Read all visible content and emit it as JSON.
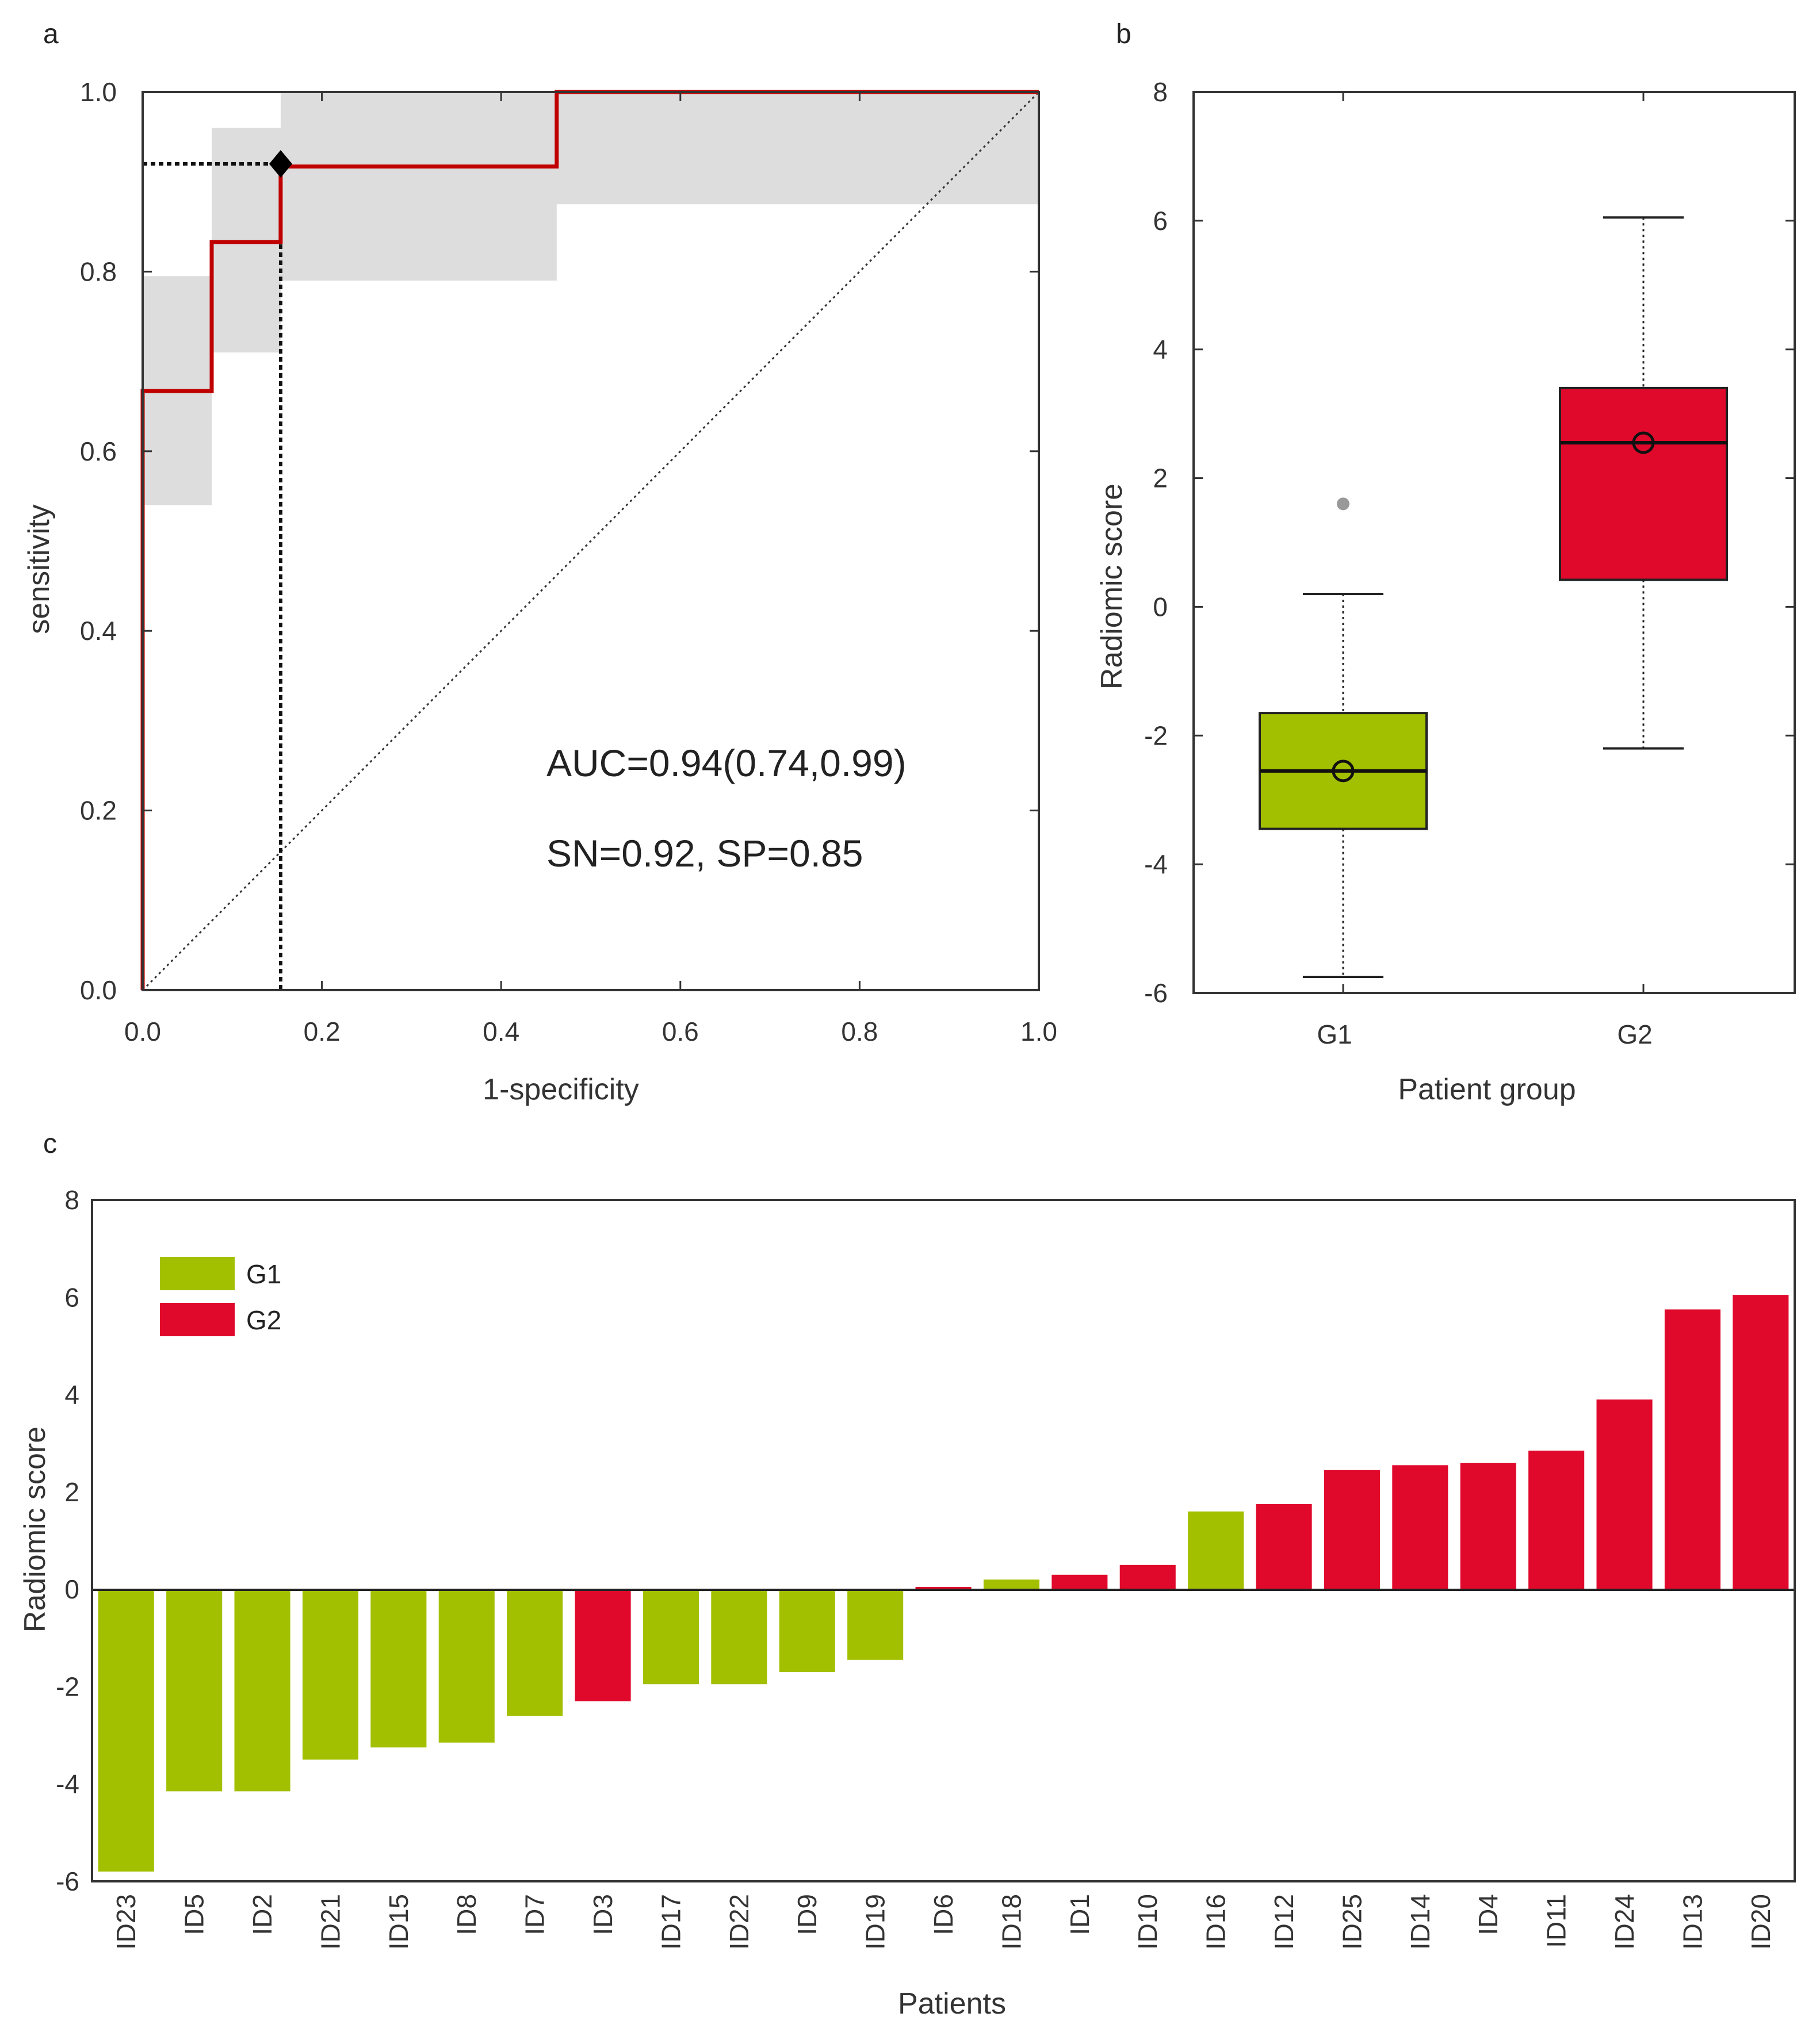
{
  "chart_data": [
    {
      "panel": "a",
      "type": "line",
      "subtype": "roc",
      "xlabel": "1-specificity",
      "ylabel": "sensitivity",
      "xlim": [
        0,
        1
      ],
      "ylim": [
        0,
        1
      ],
      "xticks": [
        "0.0",
        "0.2",
        "0.4",
        "0.6",
        "0.8",
        "1.0"
      ],
      "yticks": [
        "0.0",
        "0.2",
        "0.4",
        "0.6",
        "0.8",
        "1.0"
      ],
      "roc_curve": {
        "name": "ROC",
        "color": "#c00000",
        "x": [
          0.0,
          0.0,
          0.077,
          0.077,
          0.154,
          0.154,
          0.462,
          0.462,
          1.0
        ],
        "y": [
          0.0,
          0.667,
          0.667,
          0.833,
          0.833,
          0.917,
          0.917,
          1.0,
          1.0
        ]
      },
      "confidence_band": {
        "color": "#dddddd",
        "lower": [
          [
            0.0,
            0.54
          ],
          [
            0.077,
            0.71
          ],
          [
            0.154,
            0.79
          ],
          [
            0.462,
            0.875
          ],
          [
            1.0,
            0.875
          ]
        ],
        "upper": [
          [
            0.0,
            0.795
          ],
          [
            0.077,
            0.96
          ],
          [
            0.154,
            1.0
          ],
          [
            1.0,
            1.0
          ]
        ]
      },
      "chance_line": {
        "x": [
          0,
          1
        ],
        "y": [
          0,
          1
        ]
      },
      "operating_point": {
        "x": 0.154,
        "y": 0.92
      },
      "annotations": [
        "AUC=0.94(0.74,0.99)",
        "SN=0.92, SP=0.85"
      ]
    },
    {
      "panel": "b",
      "type": "box",
      "xlabel": "Patient group",
      "ylabel": "Radiomic score",
      "ylim": [
        -6,
        8
      ],
      "yticks": [
        "-6",
        "-4",
        "-2",
        "0",
        "2",
        "4",
        "6",
        "8"
      ],
      "groups": [
        {
          "name": "G1",
          "color": "#a3c000",
          "whisker_low": -5.75,
          "q1": -3.45,
          "median": -2.55,
          "mean": -2.55,
          "q3": -1.65,
          "whisker_high": 0.2,
          "outliers": [
            1.6
          ]
        },
        {
          "name": "G2",
          "color": "#e0092c",
          "whisker_low": -2.2,
          "q1": 0.42,
          "median": 2.55,
          "mean": 2.55,
          "q3": 3.4,
          "whisker_high": 6.05,
          "outliers": []
        }
      ]
    },
    {
      "panel": "c",
      "type": "bar",
      "xlabel": "Patients",
      "ylabel": "Radiomic score",
      "ylim": [
        -6,
        8
      ],
      "yticks": [
        "-6",
        "-4",
        "-2",
        "0",
        "2",
        "4",
        "6",
        "8"
      ],
      "legend": [
        {
          "label": "G1",
          "color": "#a3c000"
        },
        {
          "label": "G2",
          "color": "#e0092c"
        }
      ],
      "legend_position": "top-left",
      "categories": [
        "ID23",
        "ID5",
        "ID2",
        "ID21",
        "ID15",
        "ID8",
        "ID7",
        "ID3",
        "ID17",
        "ID22",
        "ID9",
        "ID19",
        "ID6",
        "ID18",
        "ID1",
        "ID10",
        "ID16",
        "ID12",
        "ID25",
        "ID14",
        "ID4",
        "ID11",
        "ID24",
        "ID13",
        "ID20"
      ],
      "values": [
        -5.8,
        -4.15,
        -4.15,
        -3.5,
        -3.25,
        -3.15,
        -2.6,
        -2.3,
        -1.95,
        -1.95,
        -1.7,
        -1.45,
        0.05,
        0.2,
        0.3,
        0.5,
        1.6,
        1.75,
        2.45,
        2.55,
        2.6,
        2.85,
        3.9,
        5.75,
        6.05
      ],
      "groups": [
        "G1",
        "G1",
        "G1",
        "G1",
        "G1",
        "G1",
        "G1",
        "G2",
        "G1",
        "G1",
        "G1",
        "G1",
        "G2",
        "G1",
        "G2",
        "G2",
        "G1",
        "G2",
        "G2",
        "G2",
        "G2",
        "G2",
        "G2",
        "G2",
        "G2"
      ]
    }
  ]
}
